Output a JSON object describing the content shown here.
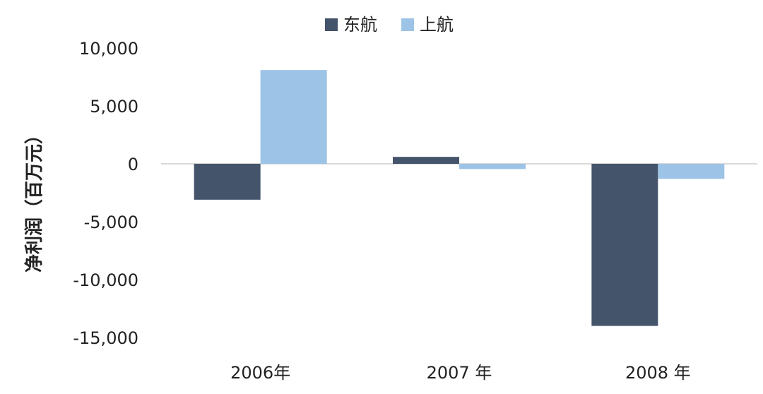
{
  "chart_data": {
    "type": "bar",
    "categories": [
      "2006年",
      "2007 年",
      "2008 年"
    ],
    "series": [
      {
        "name": "东航",
        "values": [
          -3100,
          600,
          -14000
        ],
        "color": "#44546a"
      },
      {
        "name": "上航",
        "values": [
          8100,
          -450,
          -1300
        ],
        "color": "#9dc3e6"
      }
    ],
    "ylabel": "净利润（百万元）",
    "xlabel": "",
    "ylim": [
      -15000,
      10000
    ],
    "yticks": [
      10000,
      5000,
      0,
      -5000,
      -10000,
      -15000
    ],
    "ytick_labels": [
      "10,000",
      "5,000",
      "0",
      "-5,000",
      "-10,000",
      "-15,000"
    ],
    "legend_position": "top-center",
    "grid": false
  }
}
